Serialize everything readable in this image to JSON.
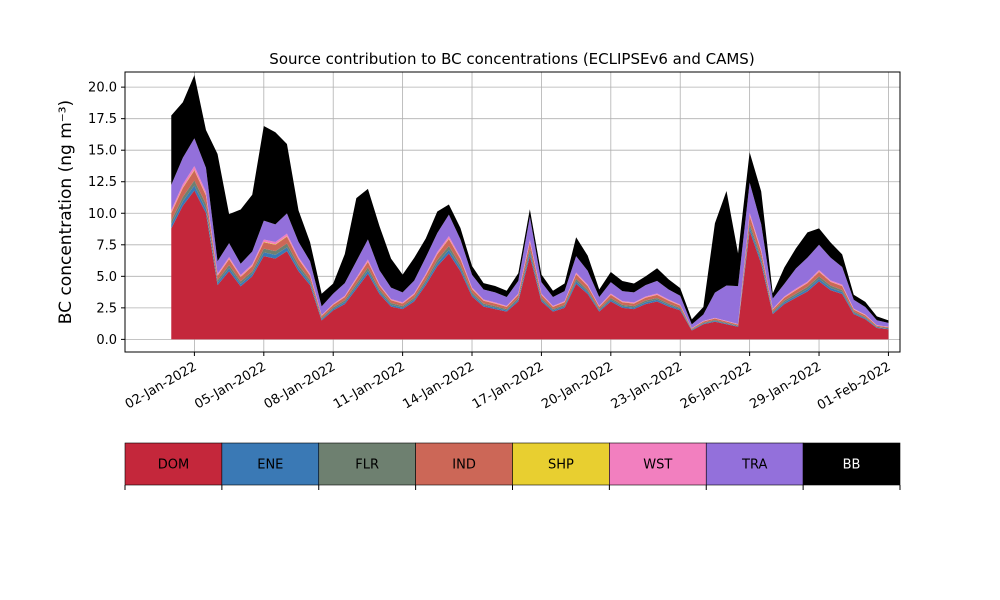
{
  "chart_data": {
    "type": "area",
    "stacked": true,
    "title": "Source contribution to BC concentrations (ECLIPSEv6 and CAMS)",
    "ylabel": "BC concentration (ng m⁻³)",
    "xlabel": "",
    "ylim": [
      -1.0,
      21.2
    ],
    "xlim": [
      0.0,
      33.5
    ],
    "y_ticks": [
      0.0,
      2.5,
      5.0,
      7.5,
      10.0,
      12.5,
      15.0,
      17.5,
      20.0
    ],
    "y_tick_labels": [
      "0.0",
      "2.5",
      "5.0",
      "7.5",
      "10.0",
      "12.5",
      "15.0",
      "17.5",
      "20.0"
    ],
    "x_ticks": [
      3,
      6,
      9,
      12,
      15,
      18,
      21,
      24,
      27,
      30,
      33
    ],
    "x_tick_labels": [
      "02-Jan-2022",
      "05-Jan-2022",
      "08-Jan-2022",
      "11-Jan-2022",
      "14-Jan-2022",
      "17-Jan-2022",
      "20-Jan-2022",
      "23-Jan-2022",
      "26-Jan-2022",
      "29-Jan-2022",
      "01-Feb-2022"
    ],
    "grid": true,
    "x": [
      2.0,
      2.5,
      3.0,
      3.5,
      4.0,
      4.5,
      5.0,
      5.5,
      6.0,
      6.5,
      7.0,
      7.5,
      8.0,
      8.5,
      9.0,
      9.5,
      10.0,
      10.5,
      11.0,
      11.5,
      12.0,
      12.5,
      13.0,
      13.5,
      14.0,
      14.5,
      15.0,
      15.5,
      16.0,
      16.5,
      17.0,
      17.5,
      18.0,
      18.5,
      19.0,
      19.5,
      20.0,
      20.5,
      21.0,
      21.5,
      22.0,
      22.5,
      23.0,
      23.5,
      24.0,
      24.5,
      25.0,
      25.5,
      26.0,
      26.5,
      27.0,
      27.5,
      28.0,
      28.5,
      29.0,
      29.5,
      30.0,
      30.5,
      31.0,
      31.5,
      32.0,
      32.5,
      33.0
    ],
    "series": [
      {
        "name": "DOM",
        "color": "#c4273b",
        "values": [
          8.8,
          10.6,
          11.8,
          10.0,
          4.3,
          5.4,
          4.2,
          5.0,
          6.6,
          6.4,
          7.0,
          5.4,
          4.3,
          1.5,
          2.3,
          2.8,
          4.0,
          5.2,
          3.6,
          2.6,
          2.4,
          3.0,
          4.3,
          5.8,
          6.8,
          5.4,
          3.4,
          2.6,
          2.4,
          2.2,
          3.0,
          6.6,
          3.0,
          2.2,
          2.5,
          4.4,
          3.6,
          2.2,
          3.0,
          2.5,
          2.4,
          2.8,
          3.0,
          2.6,
          2.3,
          0.7,
          1.2,
          1.4,
          1.2,
          1.0,
          8.6,
          6.0,
          2.0,
          2.8,
          3.3,
          3.8,
          4.6,
          3.9,
          3.6,
          2.0,
          1.6,
          0.9,
          0.8
        ]
      },
      {
        "name": "ENE",
        "color": "#3a79b5",
        "values": [
          0.3,
          0.35,
          0.4,
          0.35,
          0.2,
          0.25,
          0.2,
          0.2,
          0.3,
          0.3,
          0.3,
          0.25,
          0.2,
          0.1,
          0.12,
          0.15,
          0.2,
          0.25,
          0.18,
          0.14,
          0.12,
          0.15,
          0.2,
          0.25,
          0.3,
          0.25,
          0.16,
          0.12,
          0.12,
          0.1,
          0.14,
          0.3,
          0.14,
          0.1,
          0.12,
          0.2,
          0.16,
          0.1,
          0.14,
          0.12,
          0.12,
          0.14,
          0.14,
          0.12,
          0.1,
          0.05,
          0.06,
          0.07,
          0.06,
          0.05,
          0.3,
          0.25,
          0.1,
          0.14,
          0.16,
          0.18,
          0.2,
          0.18,
          0.16,
          0.1,
          0.08,
          0.05,
          0.05
        ]
      },
      {
        "name": "FLR",
        "color": "#6e8070",
        "values": [
          0.3,
          0.35,
          0.4,
          0.35,
          0.2,
          0.25,
          0.2,
          0.2,
          0.3,
          0.3,
          0.3,
          0.25,
          0.2,
          0.1,
          0.12,
          0.15,
          0.2,
          0.25,
          0.18,
          0.14,
          0.12,
          0.15,
          0.2,
          0.25,
          0.3,
          0.25,
          0.16,
          0.12,
          0.12,
          0.1,
          0.14,
          0.3,
          0.14,
          0.1,
          0.12,
          0.2,
          0.16,
          0.1,
          0.14,
          0.12,
          0.12,
          0.14,
          0.14,
          0.12,
          0.1,
          0.05,
          0.06,
          0.07,
          0.06,
          0.05,
          0.3,
          0.25,
          0.1,
          0.14,
          0.16,
          0.18,
          0.2,
          0.18,
          0.16,
          0.1,
          0.08,
          0.05,
          0.05
        ]
      },
      {
        "name": "IND",
        "color": "#cc6757",
        "values": [
          0.6,
          0.7,
          0.8,
          0.7,
          0.35,
          0.45,
          0.35,
          0.4,
          0.5,
          0.5,
          0.55,
          0.45,
          0.35,
          0.15,
          0.2,
          0.25,
          0.35,
          0.45,
          0.3,
          0.22,
          0.2,
          0.25,
          0.35,
          0.45,
          0.55,
          0.45,
          0.28,
          0.22,
          0.2,
          0.18,
          0.25,
          0.5,
          0.25,
          0.18,
          0.2,
          0.35,
          0.3,
          0.18,
          0.25,
          0.2,
          0.2,
          0.22,
          0.25,
          0.22,
          0.18,
          0.06,
          0.1,
          0.12,
          0.1,
          0.08,
          0.6,
          0.45,
          0.16,
          0.22,
          0.28,
          0.3,
          0.35,
          0.3,
          0.3,
          0.16,
          0.14,
          0.08,
          0.07
        ]
      },
      {
        "name": "SHP",
        "color": "#e8cf30",
        "values": [
          0.05,
          0.05,
          0.05,
          0.05,
          0.03,
          0.03,
          0.03,
          0.03,
          0.04,
          0.04,
          0.04,
          0.03,
          0.03,
          0.02,
          0.02,
          0.02,
          0.03,
          0.03,
          0.02,
          0.02,
          0.02,
          0.02,
          0.03,
          0.03,
          0.04,
          0.03,
          0.02,
          0.02,
          0.02,
          0.02,
          0.02,
          0.04,
          0.02,
          0.02,
          0.02,
          0.03,
          0.02,
          0.02,
          0.02,
          0.02,
          0.02,
          0.02,
          0.02,
          0.02,
          0.02,
          0.01,
          0.01,
          0.01,
          0.01,
          0.01,
          0.04,
          0.03,
          0.02,
          0.02,
          0.02,
          0.02,
          0.03,
          0.02,
          0.02,
          0.02,
          0.02,
          0.01,
          0.01
        ]
      },
      {
        "name": "WST",
        "color": "#f27fbf",
        "values": [
          0.2,
          0.25,
          0.3,
          0.25,
          0.12,
          0.15,
          0.12,
          0.14,
          0.18,
          0.18,
          0.2,
          0.15,
          0.12,
          0.05,
          0.07,
          0.09,
          0.12,
          0.15,
          0.1,
          0.08,
          0.07,
          0.09,
          0.12,
          0.16,
          0.2,
          0.15,
          0.1,
          0.08,
          0.07,
          0.06,
          0.09,
          0.18,
          0.09,
          0.06,
          0.07,
          0.12,
          0.1,
          0.06,
          0.09,
          0.07,
          0.07,
          0.08,
          0.09,
          0.08,
          0.06,
          0.02,
          0.04,
          0.04,
          0.04,
          0.03,
          0.2,
          0.16,
          0.06,
          0.08,
          0.1,
          0.1,
          0.12,
          0.1,
          0.1,
          0.06,
          0.05,
          0.03,
          0.03
        ]
      },
      {
        "name": "TRA",
        "color": "#9370db",
        "values": [
          2.0,
          2.1,
          2.2,
          1.9,
          1.0,
          1.1,
          0.9,
          1.0,
          1.5,
          1.4,
          1.6,
          1.2,
          1.0,
          0.7,
          0.8,
          1.0,
          1.3,
          1.6,
          1.1,
          0.9,
          0.8,
          1.0,
          1.3,
          1.5,
          1.7,
          1.4,
          1.0,
          0.8,
          0.8,
          0.7,
          1.0,
          1.8,
          0.9,
          0.7,
          0.8,
          1.3,
          1.1,
          0.7,
          0.9,
          0.8,
          0.8,
          0.9,
          1.0,
          0.8,
          0.7,
          0.3,
          0.5,
          2.0,
          2.8,
          3.0,
          2.4,
          2.0,
          0.8,
          1.0,
          1.6,
          1.9,
          2.0,
          1.8,
          1.4,
          0.7,
          0.6,
          0.4,
          0.3
        ]
      },
      {
        "name": "BB",
        "color": "#000000",
        "values": [
          5.5,
          4.4,
          5.0,
          3.0,
          8.5,
          2.3,
          4.3,
          4.5,
          7.5,
          7.3,
          5.5,
          2.5,
          1.5,
          1.0,
          0.8,
          2.3,
          5.0,
          4.0,
          3.5,
          2.3,
          1.4,
          1.8,
          1.5,
          1.7,
          0.8,
          0.9,
          0.7,
          0.5,
          0.5,
          0.5,
          0.6,
          0.6,
          0.6,
          0.5,
          0.6,
          1.5,
          1.2,
          0.6,
          0.8,
          0.8,
          0.7,
          0.7,
          1.0,
          0.8,
          0.6,
          0.4,
          0.6,
          5.5,
          7.5,
          2.6,
          2.4,
          2.6,
          0.4,
          1.3,
          1.6,
          2.0,
          1.3,
          1.2,
          1.0,
          0.4,
          0.4,
          0.3,
          0.2
        ]
      }
    ]
  },
  "legend": {
    "items": [
      {
        "name": "DOM",
        "color": "#c4273b",
        "text_color": "#000000"
      },
      {
        "name": "ENE",
        "color": "#3a79b5",
        "text_color": "#000000"
      },
      {
        "name": "FLR",
        "color": "#6e8070",
        "text_color": "#000000"
      },
      {
        "name": "IND",
        "color": "#cc6757",
        "text_color": "#000000"
      },
      {
        "name": "SHP",
        "color": "#e8cf30",
        "text_color": "#000000"
      },
      {
        "name": "WST",
        "color": "#f27fbf",
        "text_color": "#000000"
      },
      {
        "name": "TRA",
        "color": "#9370db",
        "text_color": "#000000"
      },
      {
        "name": "BB",
        "color": "#000000",
        "text_color": "#ffffff"
      }
    ]
  }
}
